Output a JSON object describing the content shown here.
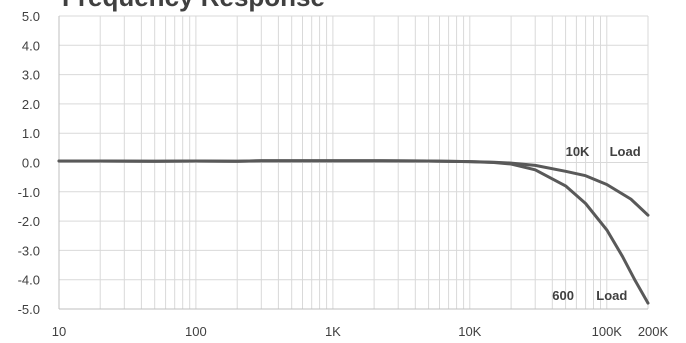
{
  "chart_data": {
    "type": "line",
    "title": "Frequency Response",
    "xlabel": "",
    "ylabel": "",
    "x_scale": "log",
    "xlim": [
      10,
      200000
    ],
    "ylim": [
      -5,
      5
    ],
    "y_ticks": [
      5,
      4,
      3,
      2,
      1,
      0,
      -1,
      -2,
      -3,
      -4,
      -5
    ],
    "y_tick_labels": [
      "5.0",
      "4.0",
      "3.0",
      "2.0",
      "1.0",
      "0.0",
      "-1.0",
      "-2.0",
      "-3.0",
      "-4.0",
      "-5.0"
    ],
    "x_ticks": [
      10,
      100,
      1000,
      10000,
      100000,
      200000
    ],
    "x_tick_labels": [
      "10",
      "100",
      "1K",
      "10K",
      "100K",
      "200K"
    ],
    "grid": true,
    "line_color": "#595959",
    "grid_color": "#d9d9d9",
    "series": [
      {
        "points": [
          [
            10,
            0.05
          ],
          [
            20,
            0.05
          ],
          [
            50,
            0.04
          ],
          [
            100,
            0.05
          ],
          [
            200,
            0.04
          ],
          [
            300,
            0.06
          ],
          [
            500,
            0.06
          ],
          [
            1000,
            0.06
          ],
          [
            2000,
            0.06
          ],
          [
            5000,
            0.05
          ],
          [
            10000,
            0.03
          ],
          [
            15000,
            0.01
          ],
          [
            20000,
            -0.02
          ],
          [
            30000,
            -0.1
          ],
          [
            50000,
            -0.3
          ],
          [
            70000,
            -0.45
          ],
          [
            100000,
            -0.75
          ],
          [
            150000,
            -1.25
          ],
          [
            200000,
            -1.8
          ]
        ]
      },
      {
        "points": [
          [
            10,
            0.05
          ],
          [
            20,
            0.05
          ],
          [
            50,
            0.04
          ],
          [
            100,
            0.05
          ],
          [
            200,
            0.04
          ],
          [
            300,
            0.06
          ],
          [
            500,
            0.06
          ],
          [
            1000,
            0.06
          ],
          [
            2000,
            0.06
          ],
          [
            5000,
            0.05
          ],
          [
            10000,
            0.03
          ],
          [
            15000,
            0.0
          ],
          [
            20000,
            -0.05
          ],
          [
            30000,
            -0.25
          ],
          [
            50000,
            -0.8
          ],
          [
            70000,
            -1.4
          ],
          [
            100000,
            -2.3
          ],
          [
            130000,
            -3.2
          ],
          [
            160000,
            -4.0
          ],
          [
            200000,
            -4.8
          ]
        ]
      }
    ],
    "annotations": [
      {
        "number": "10K",
        "word": "Load",
        "x": 50000,
        "y": 0.22
      },
      {
        "number": "600",
        "word": "Load",
        "x": 40000,
        "y": -4.7
      }
    ]
  }
}
